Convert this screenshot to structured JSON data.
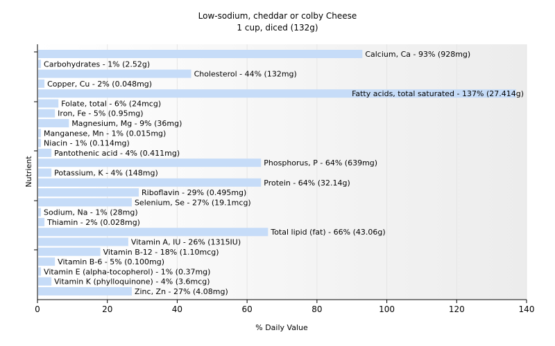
{
  "chart_data": {
    "type": "bar",
    "orientation": "horizontal",
    "title": "Low-sodium, cheddar or colby Cheese",
    "subtitle": "1 cup, diced (132g)",
    "xlabel": "% Daily Value",
    "ylabel": "Nutrient",
    "xlim": [
      0,
      140
    ],
    "xticks": [
      0,
      20,
      40,
      60,
      80,
      100,
      120,
      140
    ],
    "grid": true,
    "bar_color": "#c6dcf8",
    "bars": [
      {
        "label": "Calcium, Ca - 93% (928mg)",
        "value": 93
      },
      {
        "label": "Carbohydrates - 1% (2.52g)",
        "value": 1
      },
      {
        "label": "Cholesterol - 44% (132mg)",
        "value": 44
      },
      {
        "label": "Copper, Cu - 2% (0.048mg)",
        "value": 2
      },
      {
        "label": "Fatty acids, total saturated - 137% (27.414g)",
        "value": 137
      },
      {
        "label": "Folate, total - 6% (24mcg)",
        "value": 6
      },
      {
        "label": "Iron, Fe - 5% (0.95mg)",
        "value": 5
      },
      {
        "label": "Magnesium, Mg - 9% (36mg)",
        "value": 9
      },
      {
        "label": "Manganese, Mn - 1% (0.015mg)",
        "value": 1
      },
      {
        "label": "Niacin - 1% (0.114mg)",
        "value": 1
      },
      {
        "label": "Pantothenic acid - 4% (0.411mg)",
        "value": 4
      },
      {
        "label": "Phosphorus, P - 64% (639mg)",
        "value": 64
      },
      {
        "label": "Potassium, K - 4% (148mg)",
        "value": 4
      },
      {
        "label": "Protein - 64% (32.14g)",
        "value": 64
      },
      {
        "label": "Riboflavin - 29% (0.495mg)",
        "value": 29
      },
      {
        "label": "Selenium, Se - 27% (19.1mcg)",
        "value": 27
      },
      {
        "label": "Sodium, Na - 1% (28mg)",
        "value": 1
      },
      {
        "label": "Thiamin - 2% (0.028mg)",
        "value": 2
      },
      {
        "label": "Total lipid (fat) - 66% (43.06g)",
        "value": 66
      },
      {
        "label": "Vitamin A, IU - 26% (1315IU)",
        "value": 26
      },
      {
        "label": "Vitamin B-12 - 18% (1.10mcg)",
        "value": 18
      },
      {
        "label": "Vitamin B-6 - 5% (0.100mg)",
        "value": 5
      },
      {
        "label": "Vitamin E (alpha-tocopherol) - 1% (0.37mg)",
        "value": 1
      },
      {
        "label": "Vitamin K (phylloquinone) - 4% (3.6mcg)",
        "value": 4
      },
      {
        "label": "Zinc, Zn - 27% (4.08mg)",
        "value": 27
      }
    ]
  }
}
